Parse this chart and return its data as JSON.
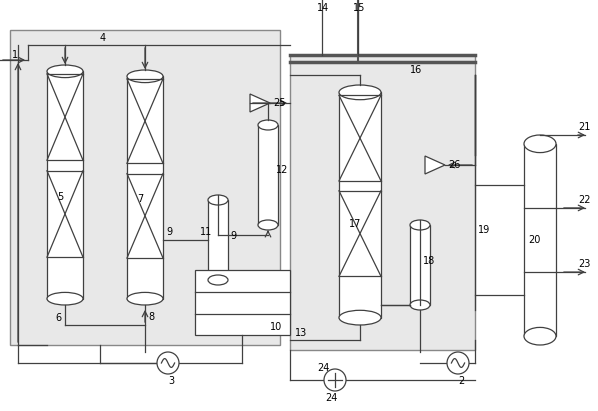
{
  "bg_color": "#f0f0f0",
  "line_color": "#404040",
  "figsize": [
    5.98,
    4.11
  ],
  "dpi": 100
}
